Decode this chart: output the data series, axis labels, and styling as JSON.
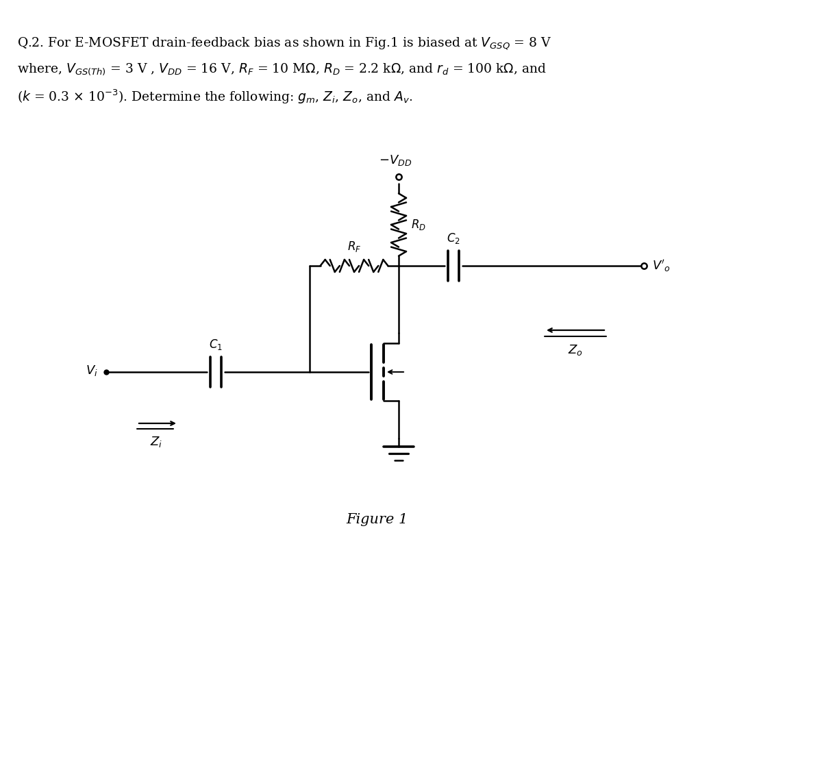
{
  "bg_color": "#ffffff",
  "line_color": "#000000",
  "text_color": "#000000",
  "figsize": [
    12.0,
    11.43
  ],
  "dpi": 100,
  "header_lines": [
    "Q.2. For E-MOSFET drain-feedback bias as shown in Fig.1 is biased at $V_{GSQ}$ = 8 V",
    "where, $V_{GS(Th)}$ = 3 V , $V_{DD}$ = 16 V, $R_F$ = 10 M$\\Omega$, $R_D$ = 2.2 k$\\Omega$, and $r_d$ = 100 k$\\Omega$, and",
    "($k$ = 0.3 $\\times$ 10$^{-3}$). Determine the following: $g_m$, $Z_i$, $Z_o$, and $A_v$."
  ],
  "fig_label": "Figure 1"
}
